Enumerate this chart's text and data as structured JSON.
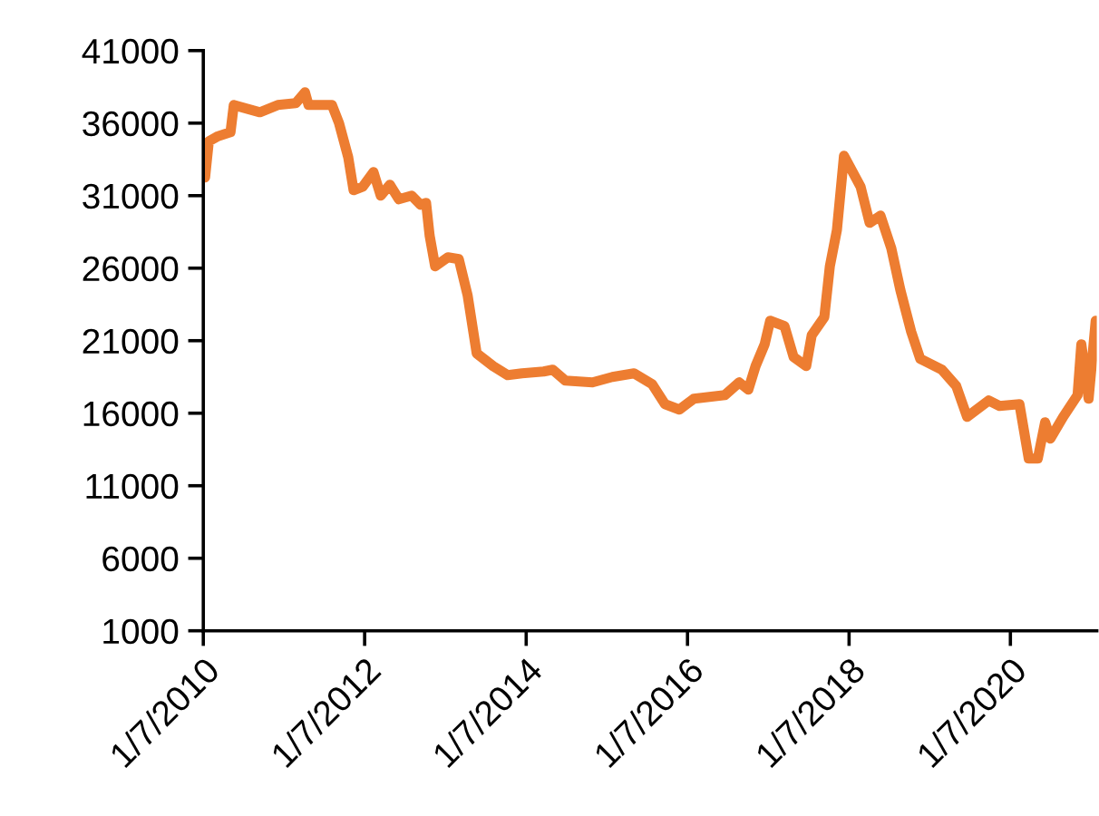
{
  "chart_data": {
    "type": "line",
    "x": [
      "2010-01-15",
      "2010-02-01",
      "2010-03-15",
      "2010-05-10",
      "2010-05-25",
      "2010-09-20",
      "2010-12-10",
      "2011-03-01",
      "2011-04-12",
      "2011-04-28",
      "2011-08-12",
      "2011-09-13",
      "2011-10-25",
      "2011-11-18",
      "2011-12-30",
      "2012-02-16",
      "2012-03-20",
      "2012-04-30",
      "2012-06-10",
      "2012-08-07",
      "2012-09-16",
      "2012-10-11",
      "2012-10-27",
      "2012-11-21",
      "2013-01-18",
      "2013-03-08",
      "2013-04-17",
      "2013-05-28",
      "2013-08-10",
      "2013-10-15",
      "2013-12-19",
      "2014-03-27",
      "2014-05-07",
      "2014-07-03",
      "2014-11-03",
      "2015-02-01",
      "2015-05-10",
      "2015-07-31",
      "2015-09-27",
      "2015-12-01",
      "2016-02-05",
      "2016-06-24",
      "2016-08-28",
      "2016-10-08",
      "2016-11-10",
      "2016-12-21",
      "2017-01-15",
      "2017-03-21",
      "2017-05-01",
      "2017-06-27",
      "2017-07-22",
      "2017-09-17",
      "2017-10-12",
      "2017-11-13",
      "2017-12-15",
      "2018-02-28",
      "2018-04-10",
      "2018-05-29",
      "2018-07-17",
      "2018-08-27",
      "2018-10-15",
      "2018-11-25",
      "2019-03-03",
      "2019-05-07",
      "2019-06-25",
      "2019-10-01",
      "2019-11-19",
      "2020-02-17",
      "2020-03-30",
      "2020-05-10",
      "2020-06-12",
      "2020-07-06",
      "2020-09-02",
      "2020-11-06",
      "2020-11-23",
      "2020-12-26",
      "2021-01-27"
    ],
    "series": [
      {
        "color": "#ed7d31",
        "values": [
          32250,
          34750,
          35100,
          35375,
          37250,
          36750,
          37250,
          37375,
          38125,
          37250,
          37250,
          36000,
          33625,
          31375,
          31625,
          32625,
          31000,
          31750,
          30750,
          31000,
          30375,
          30500,
          28250,
          26125,
          26750,
          26625,
          24125,
          20125,
          19250,
          18625,
          18750,
          18875,
          19000,
          18250,
          18125,
          18500,
          18750,
          18000,
          16625,
          16250,
          17000,
          17250,
          18125,
          17625,
          19250,
          20750,
          22375,
          22000,
          19875,
          19250,
          21375,
          22625,
          26125,
          28625,
          33750,
          31625,
          29125,
          29625,
          27375,
          24500,
          21625,
          19750,
          19000,
          17875,
          15750,
          16875,
          16500,
          16625,
          12875,
          12875,
          15375,
          14250,
          15750,
          17250,
          20750,
          17000,
          22375
        ]
      }
    ],
    "xlim": [
      "2010-01-07",
      "2021-02-01"
    ],
    "xticks": [
      {
        "value": "2010-01-07",
        "label": "1/7/2010"
      },
      {
        "value": "2012-01-07",
        "label": "1/7/2012"
      },
      {
        "value": "2014-01-07",
        "label": "1/7/2014"
      },
      {
        "value": "2016-01-07",
        "label": "1/7/2016"
      },
      {
        "value": "2018-01-07",
        "label": "1/7/2018"
      },
      {
        "value": "2020-01-07",
        "label": "1/7/2020"
      }
    ],
    "ylim": [
      1000,
      41000
    ],
    "yticks": [
      1000,
      6000,
      11000,
      16000,
      21000,
      26000,
      31000,
      36000,
      41000
    ],
    "grid": false,
    "legend": false,
    "marker": "none",
    "line_style": "solid"
  }
}
